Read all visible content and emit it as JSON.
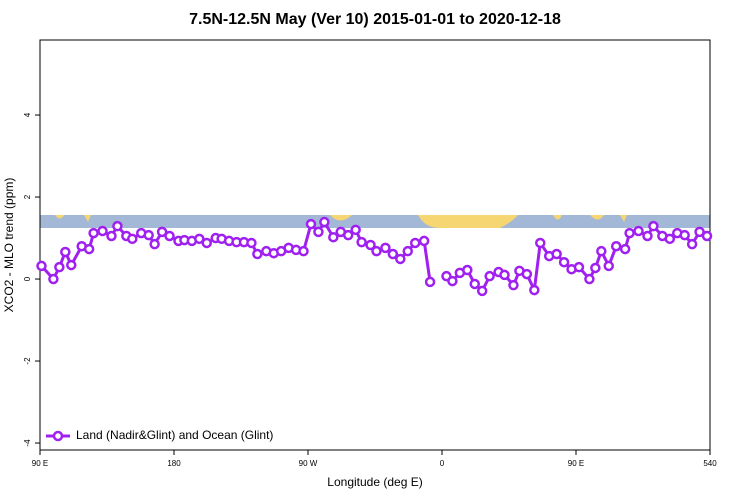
{
  "chart_data": {
    "type": "line",
    "title": "7.5N-12.5N May (Ver 10)   2015-01-01 to 2020-12-18",
    "x_label": "Longitude (deg E)",
    "y_label": "XCO2 - MLO trend (ppm)",
    "xlim": [
      90,
      540
    ],
    "xticks": [
      {
        "value": 90,
        "label": "90 E"
      },
      180,
      {
        "value": 270,
        "label": "90 W"
      },
      {
        "value": 360,
        "label": "0"
      },
      {
        "value": 450,
        "label": "90 E"
      },
      540
    ],
    "ylim": [
      -4.17,
      5.83
    ],
    "yticks": [
      -4,
      -2,
      0,
      2,
      4
    ],
    "legend": "bottom-left",
    "x": [
      91,
      99,
      103,
      107,
      111,
      118,
      123,
      126,
      132,
      138,
      142,
      148,
      152,
      158,
      163,
      167,
      172,
      177,
      183,
      187,
      192,
      197,
      202,
      208,
      212,
      217,
      222,
      227,
      232,
      236,
      242,
      247,
      252,
      257,
      262,
      267,
      272,
      277,
      281,
      287,
      292,
      297,
      302,
      306,
      312,
      316,
      322,
      327,
      332,
      337,
      342,
      348,
      352,
      357,
      363,
      367,
      372,
      377,
      382,
      387,
      392,
      398,
      402,
      408,
      412,
      417,
      422,
      426,
      432,
      437,
      442,
      447,
      452,
      459,
      463,
      467,
      472,
      477,
      483,
      486,
      492,
      498,
      502,
      508,
      513,
      518,
      523,
      528,
      533,
      538
    ],
    "series": [
      {
        "name": "Land (Nadir&Glint) and Ocean (Glint)",
        "color": "#a020f0",
        "values": [
          0.32,
          0.0,
          0.29,
          0.66,
          0.34,
          0.8,
          0.73,
          1.12,
          1.17,
          1.05,
          1.29,
          1.05,
          0.98,
          1.12,
          1.07,
          0.85,
          1.15,
          1.05,
          0.93,
          0.95,
          0.93,
          0.98,
          0.88,
          1.0,
          0.98,
          0.93,
          0.9,
          0.9,
          0.88,
          0.61,
          0.68,
          0.63,
          0.68,
          0.76,
          0.71,
          0.68,
          1.34,
          1.15,
          1.39,
          1.02,
          1.15,
          1.07,
          1.2,
          0.9,
          0.83,
          0.68,
          0.76,
          0.61,
          0.49,
          0.68,
          0.88,
          0.93,
          -0.07,
          null,
          0.07,
          -0.05,
          0.15,
          0.22,
          -0.12,
          -0.29,
          0.07,
          0.17,
          0.1,
          -0.15,
          0.2,
          0.12,
          -0.27,
          0.88,
          0.56,
          0.61,
          0.41,
          0.24,
          0.29,
          0.0,
          0.27,
          0.68,
          0.32,
          0.8,
          0.73,
          1.12,
          1.17,
          1.05,
          1.29,
          1.05,
          0.98,
          1.12,
          1.07,
          0.85,
          1.15,
          1.05
        ]
      }
    ]
  }
}
